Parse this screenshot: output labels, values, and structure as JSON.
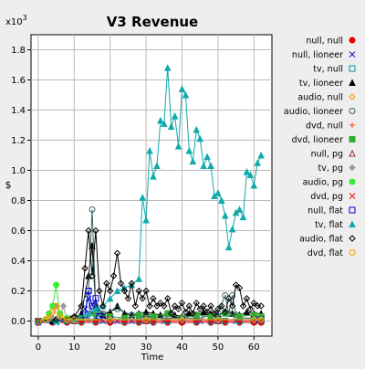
{
  "chart_data": {
    "type": "line",
    "title": "V3 Revenue",
    "xlabel": "Time",
    "ylabel": "$",
    "y_multiplier": "x10",
    "y_multiplier_exp": "3",
    "xlim": [
      -2,
      65
    ],
    "ylim": [
      -0.1,
      1.9
    ],
    "x_ticks": [
      0,
      10,
      20,
      30,
      40,
      50,
      60
    ],
    "y_ticks": [
      0.0,
      0.2,
      0.4,
      0.6,
      0.8,
      1.0,
      1.2,
      1.4,
      1.6,
      1.8
    ],
    "grid": true,
    "legend_position": "right",
    "series": [
      {
        "name": "null, null",
        "color": "#e00000",
        "marker": "circle-filled",
        "x": [
          0,
          4,
          8,
          12,
          16,
          20,
          24,
          28,
          32,
          36,
          40,
          44,
          48,
          52,
          56,
          60,
          62
        ],
        "y": [
          -0.01,
          -0.01,
          -0.01,
          -0.01,
          -0.01,
          -0.01,
          -0.01,
          -0.01,
          -0.01,
          -0.01,
          -0.01,
          -0.01,
          -0.01,
          -0.01,
          -0.01,
          -0.01,
          -0.01
        ]
      },
      {
        "name": "null, lioneer",
        "color": "#2222cc",
        "marker": "x",
        "x": [
          0,
          5,
          10,
          13,
          14,
          15,
          16,
          18,
          22,
          26,
          30,
          35,
          40,
          45,
          50,
          55,
          60,
          62
        ],
        "y": [
          -0.01,
          -0.01,
          0.0,
          0.08,
          0.15,
          0.05,
          0.02,
          0.0,
          0.0,
          0.0,
          0.0,
          0.0,
          0.0,
          0.0,
          0.0,
          0.0,
          0.0,
          0.0
        ]
      },
      {
        "name": "tv, null",
        "color": "#009999",
        "marker": "square-open",
        "x": [
          0,
          4,
          8,
          12,
          16,
          20,
          24,
          28,
          32,
          36,
          40,
          44,
          48,
          52,
          56,
          60,
          62
        ],
        "y": [
          0,
          0,
          0,
          0,
          0,
          0,
          0,
          0,
          0,
          0,
          0,
          0,
          0,
          0,
          0,
          0,
          0
        ]
      },
      {
        "name": "tv, lioneer",
        "color": "#000000",
        "marker": "triangle-filled",
        "x": [
          0,
          4,
          8,
          10,
          12,
          14,
          15,
          16,
          18,
          20,
          22,
          24,
          26,
          28,
          30,
          32,
          34,
          36,
          38,
          40,
          42,
          44,
          46,
          48,
          50,
          52,
          54,
          56,
          58,
          60,
          62
        ],
        "y": [
          0,
          0,
          0.01,
          0.02,
          0.05,
          0.3,
          0.5,
          0.1,
          0.04,
          0.06,
          0.1,
          0.05,
          0.04,
          0.05,
          0.06,
          0.05,
          0.04,
          0.05,
          0.04,
          0.03,
          0.05,
          0.04,
          0.06,
          0.05,
          0.04,
          0.06,
          0.05,
          0.04,
          0.06,
          0.05,
          0.05
        ]
      },
      {
        "name": "audio, null",
        "color": "#ff9900",
        "marker": "diamond-open",
        "x": [
          0,
          3,
          6,
          10,
          20,
          30,
          40,
          50,
          60,
          62
        ],
        "y": [
          0,
          0.03,
          0.01,
          0.01,
          0.01,
          0.01,
          0.01,
          0.01,
          0.01,
          0.01
        ]
      },
      {
        "name": "audio, lioneer",
        "color": "#336666",
        "marker": "circle-open",
        "x": [
          0,
          5,
          10,
          14,
          15,
          16,
          18,
          22,
          26,
          30,
          35,
          40,
          45,
          50,
          52,
          53,
          54,
          55,
          56,
          60,
          62
        ],
        "y": [
          0,
          0.01,
          0.02,
          0.2,
          0.74,
          0.1,
          0.05,
          0.08,
          0.04,
          0.03,
          0.02,
          0.02,
          0.02,
          0.05,
          0.17,
          0.05,
          0.17,
          0.04,
          0.02,
          0.02,
          0.02
        ]
      },
      {
        "name": "dvd, null",
        "color": "#ff6633",
        "marker": "plus",
        "x": [
          0,
          10,
          20,
          30,
          40,
          50,
          60,
          62
        ],
        "y": [
          0,
          0,
          0,
          0,
          0,
          0,
          0,
          0
        ]
      },
      {
        "name": "dvd, lioneer",
        "color": "#33aa33",
        "marker": "square-filled",
        "x": [
          0,
          8,
          12,
          16,
          20,
          24,
          28,
          32,
          36,
          40,
          44,
          48,
          52,
          56,
          60,
          62
        ],
        "y": [
          0,
          0.01,
          0.02,
          0.05,
          0.03,
          0.02,
          0.04,
          0.03,
          0.05,
          0.02,
          0.04,
          0.03,
          0.05,
          0.03,
          0.04,
          0.03
        ]
      },
      {
        "name": "null, pg",
        "color": "#993333",
        "marker": "triangle-open",
        "x": [
          0,
          10,
          20,
          30,
          40,
          50,
          60,
          62
        ],
        "y": [
          0,
          0,
          0,
          0,
          0,
          0,
          0,
          0
        ]
      },
      {
        "name": "tv, pg",
        "color": "#999999",
        "marker": "diamond-filled",
        "x": [
          0,
          4,
          5,
          6,
          7,
          8,
          9,
          10,
          14,
          20,
          30,
          40,
          50,
          60,
          62
        ],
        "y": [
          0,
          0.02,
          0.1,
          0.02,
          0.1,
          0.01,
          0.02,
          0.01,
          0.01,
          0.01,
          0.01,
          0.01,
          0.01,
          0.01,
          0.01
        ]
      },
      {
        "name": "audio, pg",
        "color": "#33ee33",
        "marker": "circle-filled",
        "x": [
          0,
          2,
          3,
          4,
          5,
          6,
          8,
          10,
          20,
          30,
          40,
          50,
          60,
          62
        ],
        "y": [
          0,
          0.01,
          0.05,
          0.1,
          0.24,
          0.05,
          0.02,
          0.01,
          0.01,
          0.01,
          0.01,
          0.01,
          0.01,
          0.01
        ]
      },
      {
        "name": "dvd, pg",
        "color": "#ee2222",
        "marker": "x",
        "x": [
          0,
          10,
          20,
          30,
          40,
          50,
          60,
          62
        ],
        "y": [
          0,
          0,
          0,
          0,
          0,
          0,
          0,
          0
        ]
      },
      {
        "name": "null, flat",
        "color": "#0000cc",
        "marker": "square-open",
        "x": [
          0,
          10,
          13,
          14,
          15,
          16,
          17,
          20,
          30,
          40,
          50,
          60,
          62
        ],
        "y": [
          0,
          0.01,
          0.04,
          0.2,
          0.1,
          0.15,
          0.03,
          0.01,
          0.01,
          0.01,
          0.01,
          0.01,
          0.01
        ]
      },
      {
        "name": "tv, flat",
        "color": "#11aaaa",
        "marker": "triangle-filled",
        "x": [
          0,
          5,
          10,
          14,
          16,
          18,
          20,
          22,
          24,
          26,
          28,
          29,
          30,
          31,
          32,
          33,
          34,
          35,
          36,
          37,
          38,
          39,
          40,
          41,
          42,
          43,
          44,
          45,
          46,
          47,
          48,
          49,
          50,
          51,
          52,
          53,
          54,
          55,
          56,
          57,
          58,
          59,
          60,
          61,
          62
        ],
        "y": [
          0,
          0,
          0.01,
          0.05,
          0.08,
          0.1,
          0.15,
          0.2,
          0.22,
          0.24,
          0.28,
          0.82,
          0.67,
          1.13,
          0.96,
          1.03,
          1.33,
          1.31,
          1.68,
          1.29,
          1.36,
          1.16,
          1.54,
          1.5,
          1.13,
          1.06,
          1.27,
          1.21,
          1.03,
          1.09,
          1.03,
          0.83,
          0.85,
          0.8,
          0.7,
          0.49,
          0.61,
          0.72,
          0.74,
          0.69,
          0.99,
          0.97,
          0.9,
          1.05,
          1.1
        ]
      },
      {
        "name": "audio, flat",
        "color": "#000000",
        "marker": "diamond-open",
        "x": [
          0,
          5,
          10,
          12,
          13,
          14,
          15,
          16,
          17,
          18,
          19,
          20,
          21,
          22,
          23,
          24,
          25,
          26,
          27,
          28,
          29,
          30,
          31,
          32,
          33,
          34,
          35,
          36,
          37,
          38,
          39,
          40,
          41,
          42,
          43,
          44,
          45,
          46,
          47,
          48,
          49,
          50,
          51,
          52,
          53,
          54,
          55,
          56,
          57,
          58,
          59,
          60,
          61,
          62
        ],
        "y": [
          0,
          0.01,
          0.03,
          0.1,
          0.35,
          0.6,
          0.3,
          0.6,
          0.2,
          0.1,
          0.25,
          0.2,
          0.3,
          0.45,
          0.25,
          0.2,
          0.15,
          0.25,
          0.1,
          0.2,
          0.15,
          0.2,
          0.1,
          0.15,
          0.1,
          0.12,
          0.1,
          0.15,
          0.05,
          0.1,
          0.08,
          0.12,
          0.06,
          0.1,
          0.05,
          0.12,
          0.08,
          0.1,
          0.06,
          0.1,
          0.05,
          0.08,
          0.1,
          0.06,
          0.15,
          0.1,
          0.24,
          0.22,
          0.1,
          0.15,
          0.08,
          0.12,
          0.1,
          0.1
        ]
      },
      {
        "name": "dvd, flat",
        "color": "#ff9900",
        "marker": "circle-open",
        "x": [
          0,
          2,
          3,
          4,
          5,
          6,
          8,
          10,
          20,
          30,
          40,
          50,
          60,
          62
        ],
        "y": [
          0,
          0.01,
          0.02,
          0.06,
          0.1,
          0.03,
          0.01,
          0.01,
          0.01,
          0.01,
          0.01,
          0.01,
          0.01,
          0.01
        ]
      }
    ]
  }
}
